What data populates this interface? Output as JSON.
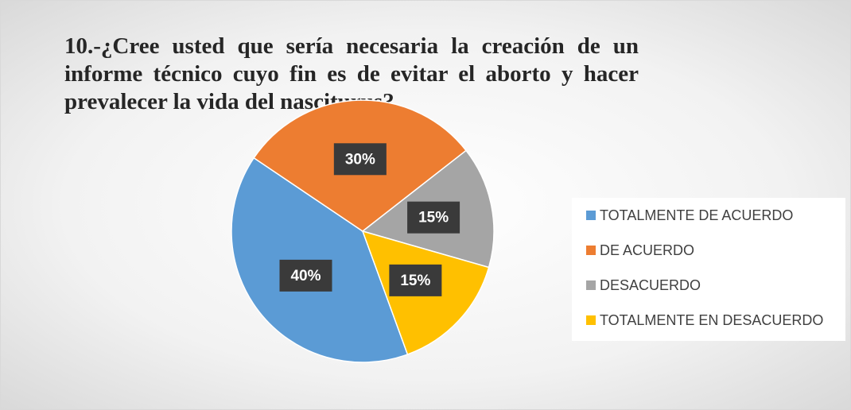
{
  "chart_data": {
    "type": "pie",
    "title": "10.-¿Cree usted que sería necesaria la creación de un informe técnico cuyo fin es de evitar el aborto y hacer prevalecer la vida del nasciturus?",
    "categories": [
      "TOTALMENTE DE ACUERDO",
      "DE ACUERDO",
      "DESACUERDO",
      "TOTALMENTE EN DESACUERDO"
    ],
    "values": [
      40,
      30,
      15,
      15
    ],
    "value_labels": [
      "40%",
      "30%",
      "15%",
      "15%"
    ],
    "colors": [
      "#5b9bd5",
      "#ed7d31",
      "#a5a5a5",
      "#ffc000"
    ],
    "start_angle": 160,
    "legend": "right"
  }
}
